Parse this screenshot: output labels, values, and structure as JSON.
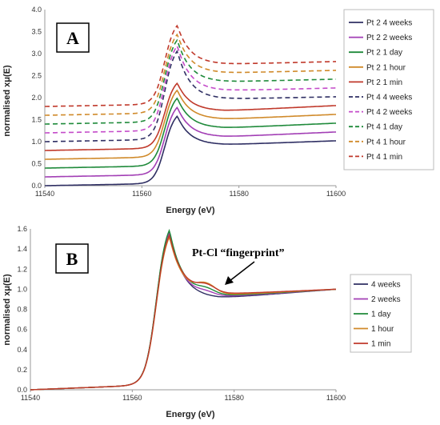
{
  "chart_data": [
    {
      "type": "line",
      "panel": "A",
      "xlabel": "Energy (eV)",
      "ylabel": "normalised xμ(E)",
      "xlim": [
        11540,
        11600
      ],
      "ylim": [
        0,
        4.0
      ],
      "x_ticks": [
        "11540",
        "11560",
        "11580",
        "11600"
      ],
      "y_ticks": [
        "0.0",
        "0.5",
        "1.0",
        "1.5",
        "2.0",
        "2.5",
        "3.0",
        "3.5",
        "4.0"
      ],
      "legend_placement": "right",
      "grid": false,
      "series": [
        {
          "name": "Pt 2  4 weeks",
          "color": "#2f2f63",
          "dash": false,
          "offset": 0.0,
          "peak": 1.58,
          "post": 0.93,
          "end": 1.02
        },
        {
          "name": "Pt 2  2 weeks",
          "color": "#a23fb5",
          "dash": false,
          "offset": 0.2,
          "peak": 1.78,
          "post": 1.11,
          "end": 1.22
        },
        {
          "name": "Pt 2  1 day",
          "color": "#1f8a3a",
          "dash": false,
          "offset": 0.4,
          "peak": 1.99,
          "post": 1.31,
          "end": 1.42
        },
        {
          "name": "Pt 2    1 hour",
          "color": "#d08a2a",
          "dash": false,
          "offset": 0.6,
          "peak": 2.17,
          "post": 1.51,
          "end": 1.62
        },
        {
          "name": "Pt 2    1 min",
          "color": "#c0392b",
          "dash": false,
          "offset": 0.8,
          "peak": 2.33,
          "post": 1.7,
          "end": 1.82
        },
        {
          "name": "Pt 4  4 weeks",
          "color": "#2f2f63",
          "dash": true,
          "offset": 1.0,
          "peak": 3.06,
          "post": 1.97,
          "end": 2.02
        },
        {
          "name": "Pt 4  2 weeks",
          "color": "#c44bc9",
          "dash": true,
          "offset": 1.2,
          "peak": 3.18,
          "post": 2.16,
          "end": 2.22
        },
        {
          "name": "Pt 4  1 day",
          "color": "#1f8a3a",
          "dash": true,
          "offset": 1.4,
          "peak": 3.31,
          "post": 2.36,
          "end": 2.42
        },
        {
          "name": "Pt 4  1 hour",
          "color": "#d08a2a",
          "dash": true,
          "offset": 1.6,
          "peak": 3.44,
          "post": 2.56,
          "end": 2.62
        },
        {
          "name": "Pt 4  1 min",
          "color": "#c0392b",
          "dash": true,
          "offset": 1.8,
          "peak": 3.64,
          "post": 2.76,
          "end": 2.82
        }
      ]
    },
    {
      "type": "line",
      "panel": "B",
      "xlabel": "Energy (eV)",
      "ylabel": "normalised xμ(E)",
      "xlim": [
        11540,
        11600
      ],
      "ylim": [
        0,
        1.6
      ],
      "x_ticks": [
        "11540",
        "11560",
        "11580",
        "11600"
      ],
      "y_ticks": [
        "0.0",
        "0.2",
        "0.4",
        "0.6",
        "0.8",
        "1.0",
        "1.2",
        "1.4",
        "1.6"
      ],
      "legend_placement": "right",
      "grid": false,
      "annotation": "Pt-Cl “fingerprint”",
      "series": [
        {
          "name": "4 weeks",
          "color": "#2f2f63",
          "peak": 1.58,
          "post": 0.91,
          "shoulder": 0.0
        },
        {
          "name": "2 weeks",
          "color": "#a23fb5",
          "peak": 1.56,
          "post": 0.92,
          "shoulder": 0.03
        },
        {
          "name": "1 day",
          "color": "#1f8a3a",
          "peak": 1.59,
          "post": 0.93,
          "shoulder": 0.05
        },
        {
          "name": "1 hour",
          "color": "#d08a2a",
          "peak": 1.52,
          "post": 0.94,
          "shoulder": 0.09
        },
        {
          "name": "1 min",
          "color": "#c0392b",
          "peak": 1.54,
          "post": 0.95,
          "shoulder": 0.07
        }
      ]
    }
  ]
}
